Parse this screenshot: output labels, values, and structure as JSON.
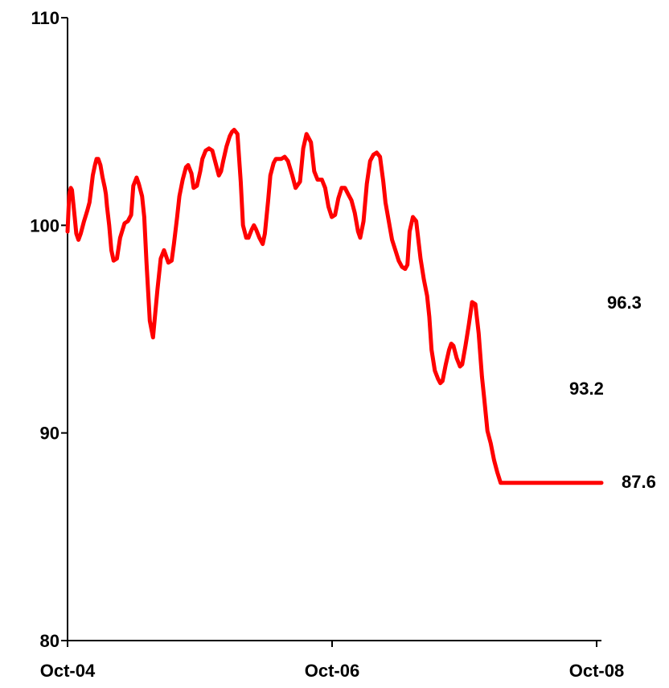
{
  "chart_data": {
    "type": "line",
    "title": "",
    "xlabel": "",
    "ylabel": "",
    "ylim": [
      80,
      110
    ],
    "yticks": [
      80,
      90,
      100,
      110
    ],
    "xticks": [
      "Oct-04",
      "Oct-06",
      "Oct-08"
    ],
    "grid": false,
    "legend": "none",
    "series": [
      {
        "color": "#ff0000",
        "x": [
          0.0,
          0.05,
          0.1,
          0.15,
          0.2,
          0.3,
          0.4,
          0.5,
          0.65,
          0.8,
          1.0,
          1.2,
          1.5,
          1.8,
          2.0,
          2.1,
          2.3,
          2.5,
          2.65,
          2.8,
          3.0,
          3.2,
          3.4,
          3.5,
          3.6,
          3.8,
          4.0,
          4.2,
          4.5,
          4.8,
          5.2,
          5.5,
          5.8,
          6.0,
          6.3,
          6.5,
          6.8,
          7.0,
          7.2,
          7.5,
          7.8,
          8.2,
          8.5,
          8.8,
          9.0,
          9.2,
          9.5,
          9.7,
          10.0,
          10.2,
          10.5,
          10.8,
          11.0,
          11.3,
          11.5,
          11.8,
          12.1,
          12.3,
          12.6,
          12.9,
          13.2,
          13.5,
          13.8,
          14.0,
          14.2,
          14.5,
          14.8,
          15.0,
          15.2,
          15.5,
          15.8,
          16.0,
          16.3,
          16.5,
          16.8,
          17.0,
          17.2,
          17.5,
          17.8,
          18.0,
          18.3,
          18.5,
          18.8,
          19.0,
          19.2,
          19.5,
          19.8,
          20.1,
          20.5,
          20.8,
          21.2,
          21.5,
          21.8,
          22.2,
          22.5,
          22.8,
          23.0,
          23.2,
          23.5,
          23.8,
          24.1,
          24.4,
          24.7,
          25.0,
          25.3,
          25.6,
          25.9,
          26.2,
          26.5,
          26.7,
          27.0,
          27.3,
          27.6,
          27.9,
          28.2,
          28.5,
          28.8,
          29.0,
          29.3,
          29.6,
          29.9,
          30.2,
          30.5,
          30.8,
          31.0,
          31.2,
          31.5,
          31.8,
          32.0,
          32.2,
          32.5,
          32.8,
          33.0,
          33.2,
          33.5,
          33.8,
          34.0,
          34.2,
          34.5,
          34.8,
          35.0,
          35.2,
          35.5,
          35.8,
          36.0,
          36.3,
          36.6,
          36.9,
          37.2,
          37.5,
          37.8,
          38.0,
          38.3,
          38.6,
          38.9,
          39.2,
          39.5,
          39.8,
          40.0,
          40.3,
          40.6,
          40.9,
          41.2,
          41.5,
          41.8,
          42.0,
          42.3,
          42.6,
          42.9,
          43.2,
          43.5,
          43.8,
          44.0,
          44.2,
          44.5,
          44.8,
          45.1,
          45.4,
          45.7,
          46.0,
          46.3,
          46.6,
          46.9,
          47.2,
          47.4,
          47.6,
          47.8,
          48.0,
          48.1,
          48.3,
          48.5,
          48.7
        ],
        "y": [
          99.7,
          100.3,
          100.9,
          101.4,
          101.6,
          101.8,
          101.7,
          101.2,
          100.4,
          99.6,
          99.3,
          99.6,
          100.2,
          100.7,
          101.1,
          101.5,
          102.4,
          102.9,
          103.2,
          103.2,
          102.9,
          102.3,
          101.8,
          101.5,
          100.9,
          100.0,
          98.8,
          98.3,
          98.4,
          99.4,
          100.1,
          100.2,
          100.5,
          101.9,
          102.3,
          102.0,
          101.4,
          100.4,
          98.2,
          95.4,
          94.6,
          96.9,
          98.4,
          98.8,
          98.5,
          98.2,
          98.3,
          99.1,
          100.4,
          101.4,
          102.2,
          102.8,
          102.9,
          102.5,
          101.8,
          101.9,
          102.6,
          103.2,
          103.6,
          103.7,
          103.6,
          103.0,
          102.4,
          102.6,
          103.1,
          103.8,
          104.3,
          104.5,
          104.6,
          104.4,
          102.1,
          100.0,
          99.4,
          99.4,
          99.8,
          100.0,
          99.8,
          99.4,
          99.1,
          99.6,
          101.2,
          102.4,
          103.0,
          103.2,
          103.2,
          103.2,
          103.3,
          103.1,
          102.4,
          101.8,
          102.1,
          103.7,
          104.4,
          104.0,
          102.6,
          102.2,
          102.2,
          102.2,
          101.8,
          100.9,
          100.4,
          100.5,
          101.3,
          101.8,
          101.8,
          101.5,
          101.2,
          100.6,
          99.7,
          99.4,
          100.2,
          102.0,
          103.1,
          103.4,
          103.5,
          103.3,
          102.1,
          101.1,
          100.2,
          99.3,
          98.8,
          98.3,
          98.0,
          97.9,
          98.1,
          99.7,
          100.4,
          100.2,
          99.3,
          98.4,
          97.4,
          96.6,
          95.6,
          94.0,
          93.0,
          92.6,
          92.4,
          92.5,
          93.3,
          94.0,
          94.3,
          94.2,
          93.6,
          93.2,
          93.3,
          94.2,
          95.2,
          96.3,
          96.2,
          94.8,
          92.7,
          91.7,
          90.1,
          89.5,
          88.7,
          88.1,
          87.6,
          87.6,
          87.6,
          87.6,
          87.6,
          87.6,
          87.6,
          87.6,
          87.6,
          87.6,
          87.6,
          87.6,
          87.6,
          87.6,
          87.6,
          87.6,
          87.6,
          87.6,
          87.6,
          87.6,
          87.6,
          87.6,
          87.6,
          87.6,
          87.6,
          87.6,
          87.6,
          87.6,
          87.6,
          87.6,
          87.6,
          87.6,
          87.6,
          87.6,
          87.6,
          87.6
        ]
      }
    ],
    "annotations": [
      {
        "text": "96.3",
        "value": 96.3
      },
      {
        "text": "93.2",
        "value": 93.2
      },
      {
        "text": "87.6",
        "value": 87.6
      }
    ]
  }
}
